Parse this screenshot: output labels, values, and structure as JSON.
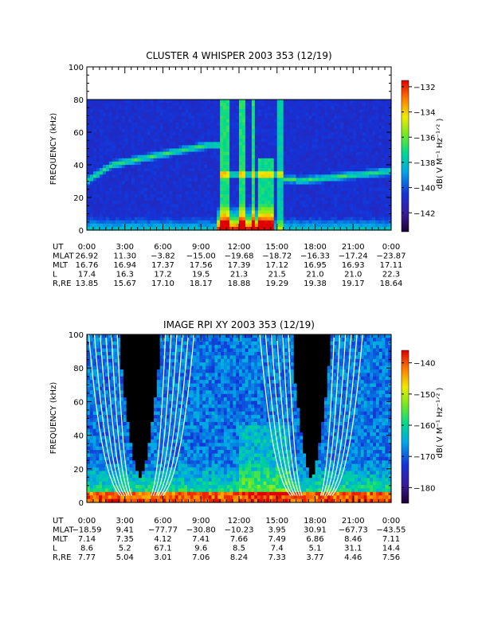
{
  "chart_data": [
    {
      "type": "heatmap",
      "title": "CLUSTER 4 WHISPER 2003 353 (12/19)",
      "ylabel": "FREQUENCY (kHz)",
      "ylim": [
        0,
        100
      ],
      "yticks": [
        "0",
        "20",
        "40",
        "60",
        "80",
        "100"
      ],
      "colorbar": {
        "label": "dB( V M⁻¹ Hz⁻¹ᐟ² )",
        "range": [
          -143.5,
          -131.5
        ],
        "ticks": [
          "-132",
          "-134",
          "-136",
          "-138",
          "-140",
          "-142"
        ]
      },
      "data_ceiling_khz": 80,
      "ephemeris": {
        "labels": [
          "UT",
          "MLAT",
          "MLT",
          "L",
          "R,RE"
        ],
        "UT": [
          "0:00",
          "3:00",
          "6:00",
          "9:00",
          "12:00",
          "15:00",
          "18:00",
          "21:00",
          "0:00"
        ],
        "MLAT": [
          "26.92",
          "11.30",
          "−3.82",
          "−15.00",
          "−19.68",
          "−18.72",
          "−16.33",
          "−17.24",
          "−23.87"
        ],
        "MLT": [
          "16.76",
          "16.94",
          "17.37",
          "17.56",
          "17.39",
          "17.12",
          "16.95",
          "16.93",
          "17.11"
        ],
        "L": [
          "17.4",
          "16.3",
          "17.2",
          "19.5",
          "21.3",
          "21.5",
          "21.0",
          "21.0",
          "22.3"
        ],
        "RRE": [
          "13.85",
          "15.67",
          "17.10",
          "18.17",
          "18.88",
          "19.29",
          "19.38",
          "19.17",
          "18.64"
        ]
      }
    },
    {
      "type": "heatmap",
      "title": "IMAGE RPI XY 2003 353 (12/19)",
      "ylabel": "FREQUENCY (kHz)",
      "ylim": [
        0,
        100
      ],
      "yticks": [
        "0",
        "20",
        "40",
        "60",
        "80",
        "100"
      ],
      "colorbar": {
        "label": "dB( V M⁻¹ Hz⁻¹ᐟ² )",
        "range": [
          -185,
          -136
        ],
        "ticks": [
          "-140",
          "-150",
          "-160",
          "-170",
          "-180"
        ]
      },
      "ephemeris": {
        "labels": [
          "UT",
          "MLAT",
          "MLT",
          "L",
          "R,RE"
        ],
        "UT": [
          "0:00",
          "3:00",
          "6:00",
          "9:00",
          "12:00",
          "15:00",
          "18:00",
          "21:00",
          "0:00"
        ],
        "MLAT": [
          "−18.59",
          "9.41",
          "−77.77",
          "−30.80",
          "−10.23",
          "3.95",
          "30.91",
          "−67.73",
          "−43.55"
        ],
        "MLT": [
          "7.14",
          "7.35",
          "4.12",
          "7.41",
          "7.66",
          "7.49",
          "6.86",
          "8.46",
          "7.11"
        ],
        "L": [
          "8.6",
          "5.2",
          "67.1",
          "9.6",
          "8.5",
          "7.4",
          "5.1",
          "31.1",
          "14.4"
        ],
        "RRE": [
          "7.77",
          "5.04",
          "3.01",
          "7.06",
          "8.24",
          "7.33",
          "3.77",
          "4.46",
          "7.56"
        ]
      }
    }
  ]
}
